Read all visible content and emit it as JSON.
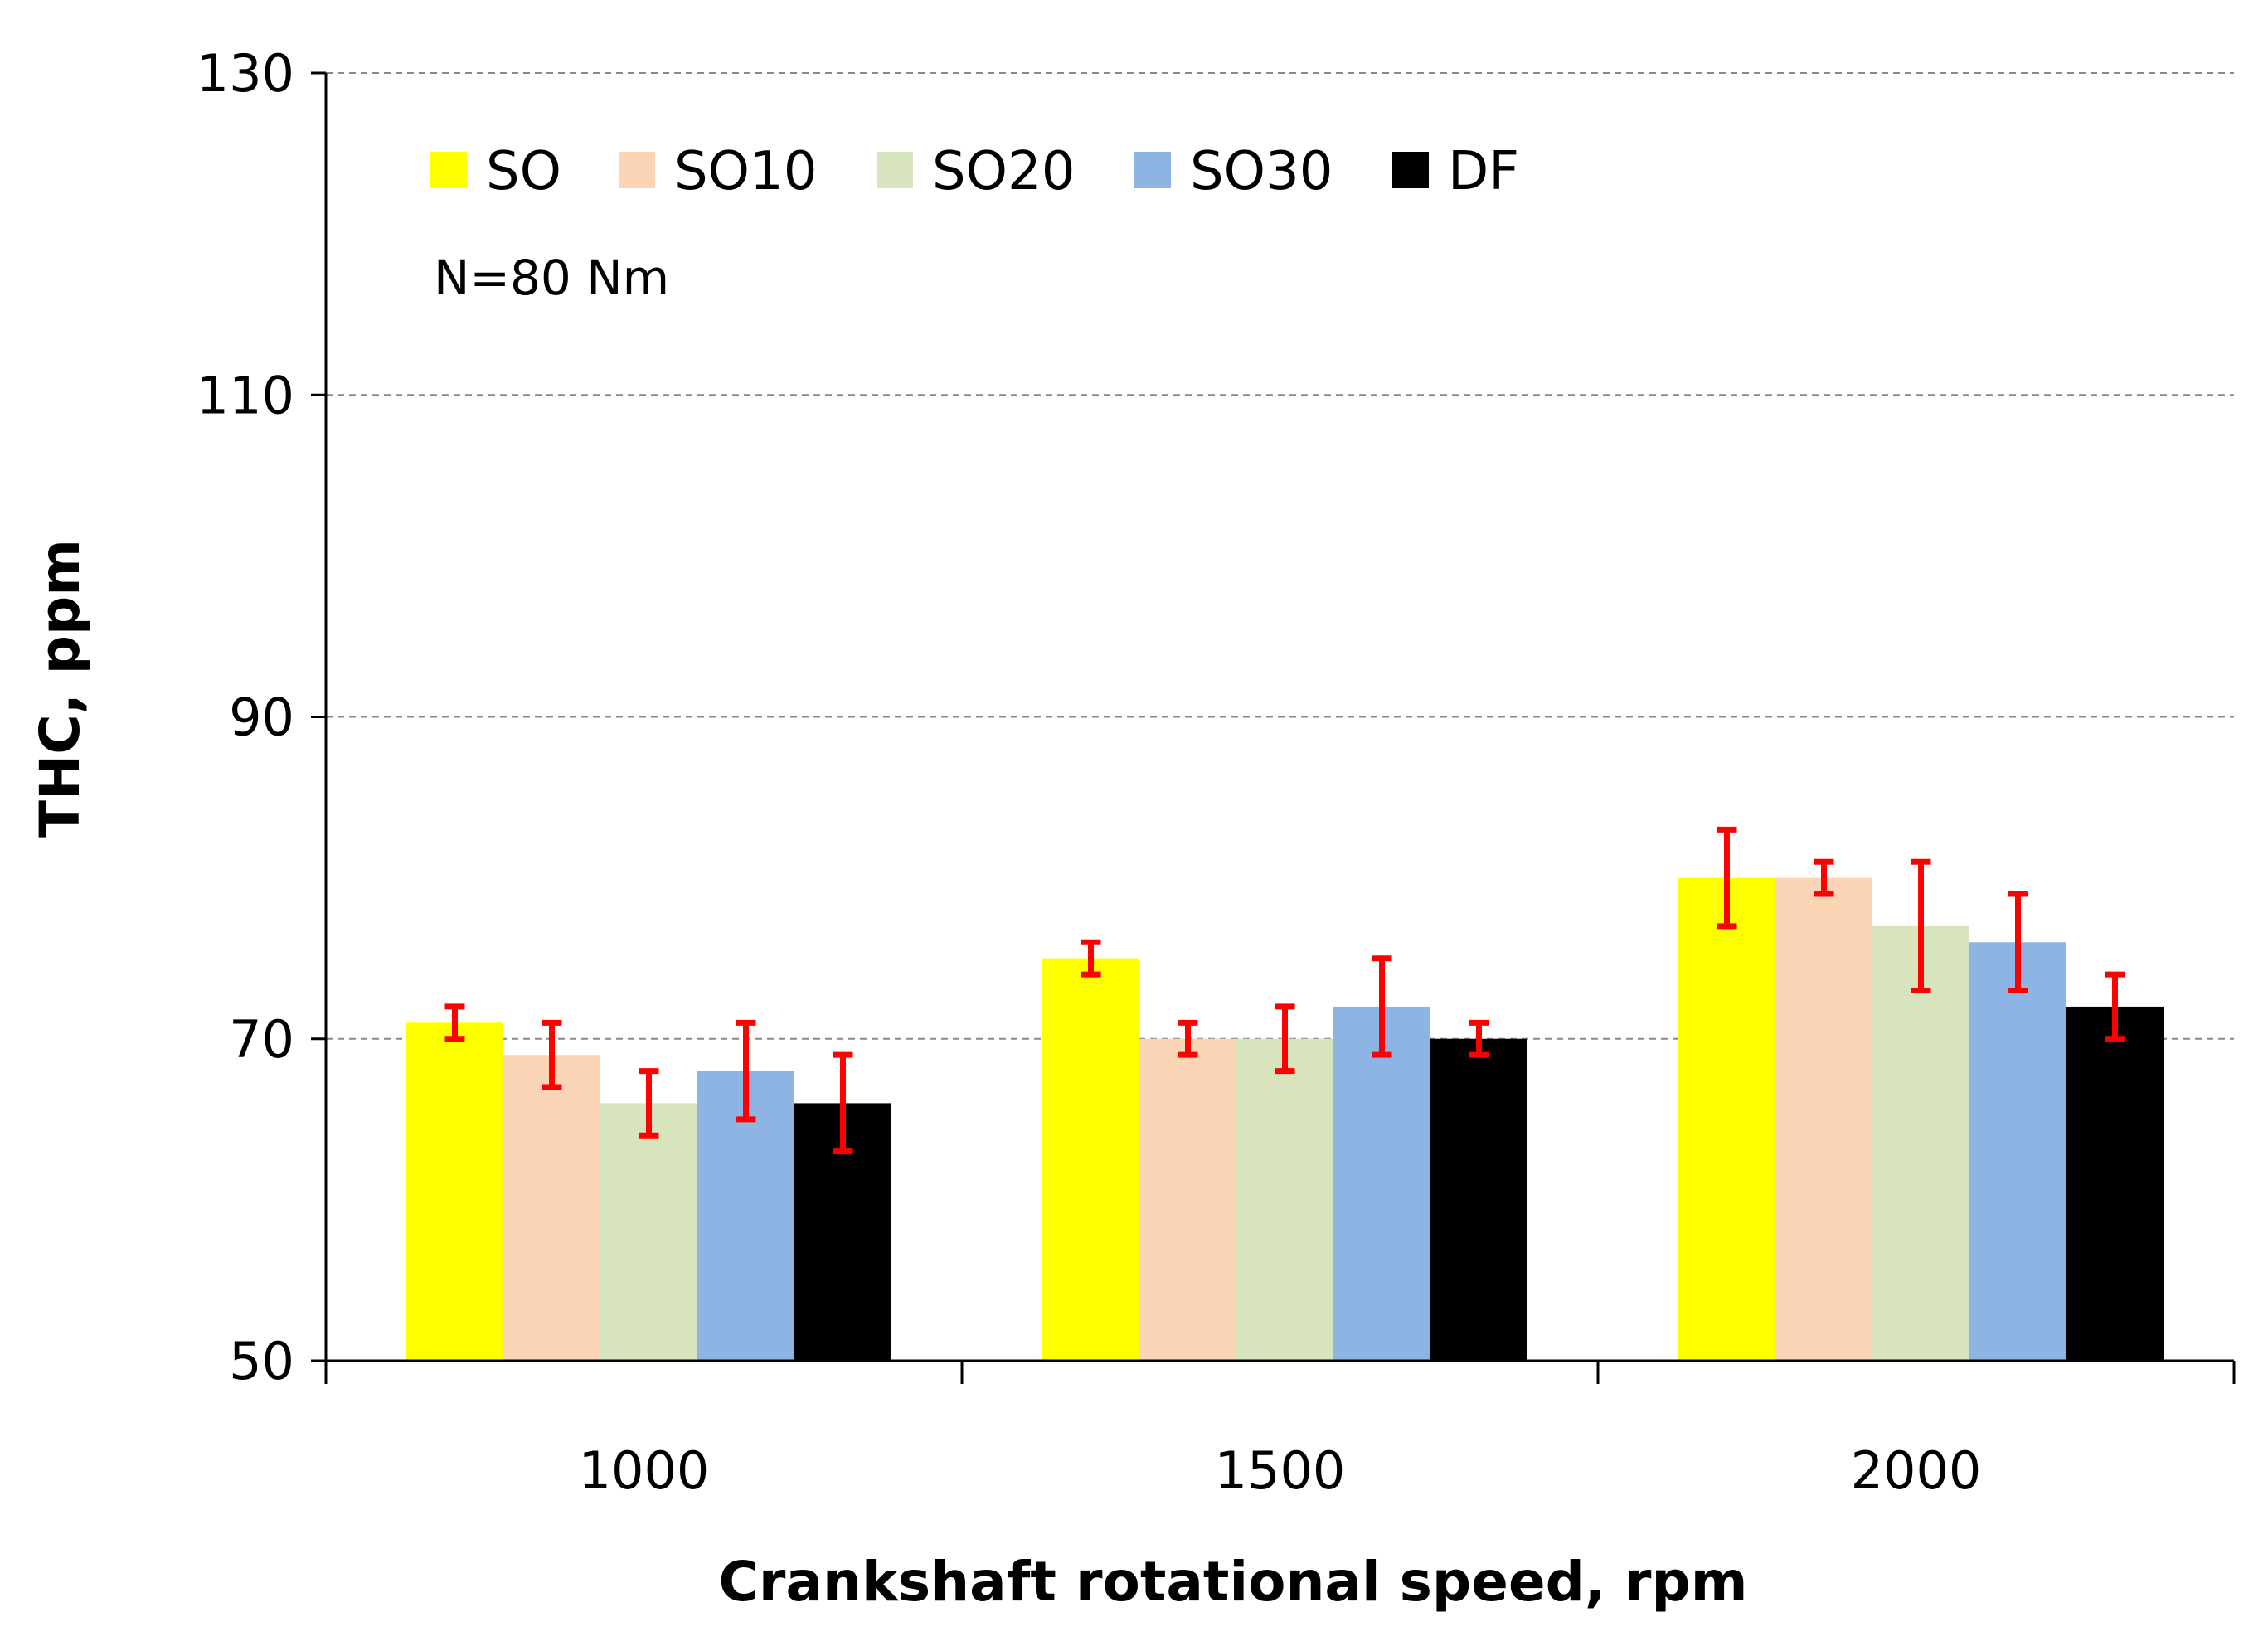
{
  "chart_data": {
    "type": "bar",
    "title": "",
    "annotation": "N=80 Nm",
    "xlabel": "Crankshaft rotational speed, rpm",
    "ylabel": "THC, ppm",
    "ylim": [
      50,
      130
    ],
    "yticks": [
      50,
      70,
      90,
      110,
      130
    ],
    "grid": true,
    "legend_position": "top-left",
    "categories": [
      "1000",
      "1500",
      "2000"
    ],
    "series": [
      {
        "name": "SO",
        "color": "#ffff00",
        "values": [
          71,
          75,
          80
        ],
        "errors": [
          1,
          1,
          3
        ]
      },
      {
        "name": "SO10",
        "color": "#fbd5b5",
        "values": [
          69,
          70,
          80
        ],
        "errors": [
          2,
          1,
          1
        ]
      },
      {
        "name": "SO20",
        "color": "#d7e4bd",
        "values": [
          66,
          70,
          77
        ],
        "errors": [
          2,
          2,
          4
        ]
      },
      {
        "name": "SO30",
        "color": "#8eb4e3",
        "values": [
          68,
          72,
          76
        ],
        "errors": [
          3,
          3,
          3
        ]
      },
      {
        "name": "DF",
        "color": "#000000",
        "values": [
          66,
          70,
          72
        ],
        "errors": [
          3,
          1,
          2
        ]
      }
    ],
    "error_bar_color": "#ff0000"
  }
}
